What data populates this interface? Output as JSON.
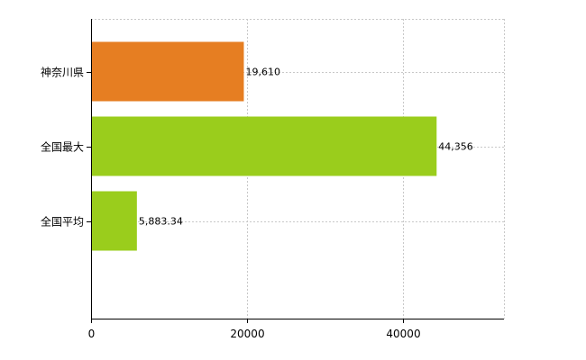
{
  "chart_data": {
    "type": "bar",
    "orientation": "horizontal",
    "categories": [
      "神奈川県",
      "全国最大",
      "全国平均"
    ],
    "values": [
      19610,
      44356,
      5883.34
    ],
    "value_labels": [
      "19,610",
      "44,356",
      "5,883.34"
    ],
    "bar_colors": [
      "#e67e22",
      "#9acd1c",
      "#9acd1c"
    ],
    "x_ticks": [
      0,
      20000,
      40000
    ],
    "x_tick_labels": [
      "0",
      "20000",
      "40000"
    ],
    "xlim": [
      0,
      53000
    ],
    "grid": true,
    "title": "",
    "xlabel": "",
    "ylabel": ""
  }
}
